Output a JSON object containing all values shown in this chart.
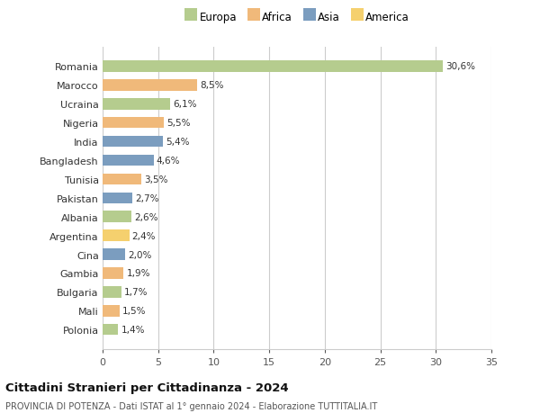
{
  "categories": [
    "Romania",
    "Marocco",
    "Ucraina",
    "Nigeria",
    "India",
    "Bangladesh",
    "Tunisia",
    "Pakistan",
    "Albania",
    "Argentina",
    "Cina",
    "Gambia",
    "Bulgaria",
    "Mali",
    "Polonia"
  ],
  "values": [
    30.6,
    8.5,
    6.1,
    5.5,
    5.4,
    4.6,
    3.5,
    2.7,
    2.6,
    2.4,
    2.0,
    1.9,
    1.7,
    1.5,
    1.4
  ],
  "labels": [
    "30,6%",
    "8,5%",
    "6,1%",
    "5,5%",
    "5,4%",
    "4,6%",
    "3,5%",
    "2,7%",
    "2,6%",
    "2,4%",
    "2,0%",
    "1,9%",
    "1,7%",
    "1,5%",
    "1,4%"
  ],
  "continents": [
    "Europa",
    "Africa",
    "Europa",
    "Africa",
    "Asia",
    "Asia",
    "Africa",
    "Asia",
    "Europa",
    "America",
    "Asia",
    "Africa",
    "Europa",
    "Africa",
    "Europa"
  ],
  "colors": {
    "Europa": "#b5cc8e",
    "Africa": "#f0b97a",
    "Asia": "#7b9dbf",
    "America": "#f5d06e"
  },
  "legend_order": [
    "Europa",
    "Africa",
    "Asia",
    "America"
  ],
  "title": "Cittadini Stranieri per Cittadinanza - 2024",
  "subtitle": "PROVINCIA DI POTENZA - Dati ISTAT al 1° gennaio 2024 - Elaborazione TUTTITALIA.IT",
  "xlim": [
    0,
    35
  ],
  "xticks": [
    0,
    5,
    10,
    15,
    20,
    25,
    30,
    35
  ],
  "background_color": "#ffffff",
  "grid_color": "#cccccc",
  "bar_height": 0.6
}
